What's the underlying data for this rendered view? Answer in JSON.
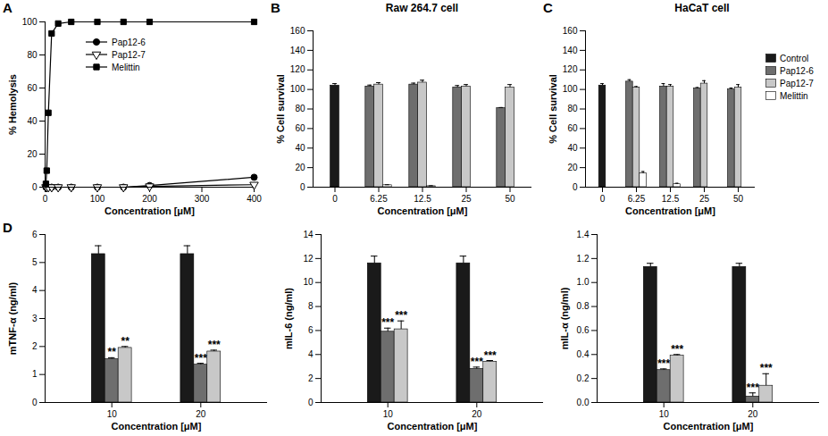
{
  "chart_data": [
    {
      "panel": "A",
      "type": "line",
      "x_label": "Concentration [μM]",
      "y_label": "% Hemolysis",
      "x": [
        1.56,
        3.125,
        6.25,
        12.5,
        25,
        50,
        100,
        150,
        200,
        400
      ],
      "xlim": [
        0,
        400
      ],
      "xticks": [
        0,
        100,
        200,
        300,
        400
      ],
      "ylim": [
        0,
        100
      ],
      "yticks": [
        0,
        20,
        40,
        60,
        80,
        100
      ],
      "legend": "top",
      "series": [
        {
          "name": "Pap12-6",
          "color": "#000000",
          "marker": "circle",
          "values": [
            0,
            0,
            0,
            0,
            0,
            0,
            0,
            0,
            1,
            6
          ]
        },
        {
          "name": "Pap12-7",
          "color": "#000000",
          "marker": "triangle-down-open",
          "values": [
            0,
            0,
            0,
            0,
            0,
            0,
            0,
            0,
            0.5,
            1.5
          ]
        },
        {
          "name": "Melittin",
          "color": "#000000",
          "marker": "square",
          "values": [
            2,
            10,
            45,
            93,
            99,
            100,
            100,
            100,
            100,
            100
          ]
        }
      ]
    },
    {
      "panel": "B",
      "title": "Raw 264.7 cell",
      "type": "bar",
      "x_label": "Concentration [μM]",
      "y_label": "% Cell survival",
      "categories": [
        "0",
        "6.25",
        "12.5",
        "25",
        "50"
      ],
      "ylim": [
        0,
        160
      ],
      "yticks": [
        0,
        20,
        40,
        60,
        80,
        100,
        120,
        140,
        160
      ],
      "series": [
        {
          "name": "Control",
          "color": "#1a1a1a",
          "values": [
            104,
            null,
            null,
            null,
            null
          ],
          "errors": [
            2,
            null,
            null,
            null,
            null
          ]
        },
        {
          "name": "Pap12-6",
          "color": "#6e6e6e",
          "values": [
            null,
            103,
            105,
            102,
            81
          ],
          "errors": [
            null,
            1.5,
            1.5,
            2,
            0.5
          ]
        },
        {
          "name": "Pap12-7",
          "color": "#c8c8c8",
          "values": [
            null,
            105,
            107,
            103,
            102
          ],
          "errors": [
            null,
            2,
            2.5,
            2,
            3
          ]
        },
        {
          "name": "Melittin",
          "color": "#ffffff",
          "values": [
            null,
            2,
            1,
            null,
            null
          ],
          "errors": [
            null,
            0.5,
            0.5,
            null,
            null
          ]
        }
      ]
    },
    {
      "panel": "C",
      "title": "HaCaT cell",
      "type": "bar",
      "x_label": "Concentration [μM]",
      "y_label": "% Cell survival",
      "categories": [
        "0",
        "6.25",
        "12.5",
        "25",
        "50"
      ],
      "ylim": [
        0,
        160
      ],
      "yticks": [
        0,
        20,
        40,
        60,
        80,
        100,
        120,
        140,
        160
      ],
      "legend": "right",
      "series": [
        {
          "name": "Control",
          "color": "#1a1a1a",
          "values": [
            104,
            null,
            null,
            null,
            null
          ],
          "errors": [
            2,
            null,
            null,
            null,
            null
          ]
        },
        {
          "name": "Pap12-6",
          "color": "#6e6e6e",
          "values": [
            null,
            108,
            103,
            101,
            100
          ],
          "errors": [
            null,
            2,
            3,
            1,
            1.5
          ]
        },
        {
          "name": "Pap12-7",
          "color": "#c8c8c8",
          "values": [
            null,
            102,
            103,
            106,
            102
          ],
          "errors": [
            null,
            1,
            2,
            3,
            3
          ]
        },
        {
          "name": "Melittin",
          "color": "#ffffff",
          "values": [
            null,
            14,
            3,
            null,
            null
          ],
          "errors": [
            null,
            2,
            1,
            null,
            null
          ]
        }
      ]
    },
    {
      "panel": "D",
      "type": "bar",
      "x_label": "Concentration [μM]",
      "y_label": "mTNF-α (ng/ml)",
      "categories": [
        "10",
        "20"
      ],
      "ylim": [
        0,
        6
      ],
      "yticks": [
        0,
        1,
        2,
        3,
        4,
        5,
        6
      ],
      "series": [
        {
          "name": "Control",
          "color": "#1a1a1a",
          "values": [
            5.3,
            5.3
          ],
          "errors": [
            0.3,
            0.3
          ]
        },
        {
          "name": "Pap12-6",
          "color": "#6e6e6e",
          "values": [
            1.55,
            1.35
          ],
          "errors": [
            0.05,
            0.05
          ],
          "annotations": [
            "**",
            "***"
          ]
        },
        {
          "name": "Pap12-7",
          "color": "#c8c8c8",
          "values": [
            1.95,
            1.82
          ],
          "errors": [
            0.05,
            0.05
          ],
          "annotations": [
            "**",
            "***"
          ]
        }
      ]
    },
    {
      "type": "bar",
      "x_label": "Concentration [μM]",
      "y_label": "mIL-6 (ng/ml)",
      "categories": [
        "10",
        "20"
      ],
      "ylim": [
        0,
        14
      ],
      "yticks": [
        0,
        2,
        4,
        6,
        8,
        10,
        12,
        14
      ],
      "series": [
        {
          "name": "Control",
          "color": "#1a1a1a",
          "values": [
            11.6,
            11.6
          ],
          "errors": [
            0.6,
            0.6
          ]
        },
        {
          "name": "Pap12-6",
          "color": "#6e6e6e",
          "values": [
            5.9,
            2.8
          ],
          "errors": [
            0.3,
            0.15
          ],
          "annotations": [
            "***",
            "***"
          ]
        },
        {
          "name": "Pap12-7",
          "color": "#c8c8c8",
          "values": [
            6.1,
            3.4
          ],
          "errors": [
            0.7,
            0.1
          ],
          "annotations": [
            "***",
            "***"
          ]
        }
      ]
    },
    {
      "type": "bar",
      "x_label": "Concentration [μM]",
      "y_label": "mIL-α (ng/ml)",
      "categories": [
        "10",
        "20"
      ],
      "ylim": [
        0,
        1.4
      ],
      "yticks": [
        {
          "value": 0,
          "label": "0.0"
        },
        0.2,
        0.4,
        0.6,
        0.8,
        {
          "value": 1,
          "label": "1.0"
        },
        1.2,
        1.4
      ],
      "series": [
        {
          "name": "Control",
          "color": "#1a1a1a",
          "values": [
            1.13,
            1.13
          ],
          "errors": [
            0.03,
            0.03
          ]
        },
        {
          "name": "Pap12-6",
          "color": "#6e6e6e",
          "values": [
            0.27,
            0.05
          ],
          "errors": [
            0.01,
            0.03
          ],
          "annotations": [
            "***",
            "***"
          ]
        },
        {
          "name": "Pap12-7",
          "color": "#c8c8c8",
          "values": [
            0.39,
            0.14
          ],
          "errors": [
            0.01,
            0.1
          ],
          "annotations": [
            "***",
            "***"
          ]
        }
      ]
    }
  ]
}
